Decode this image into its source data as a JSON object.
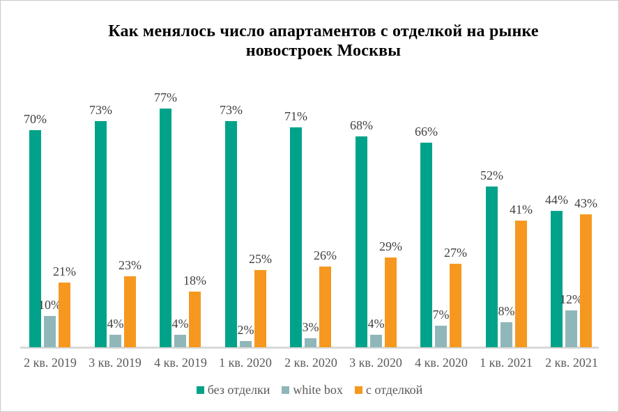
{
  "chart_data": {
    "type": "bar",
    "title": "Как менялось число апартаментов с отделкой на рынке новостроек Москвы",
    "title_lines": [
      "Как менялось число апартаментов с отделкой на рынке",
      "новостроек Москвы"
    ],
    "categories": [
      "2 кв. 2019",
      "3 кв. 2019",
      "4 кв. 2019",
      "1 кв. 2020",
      "2 кв. 2020",
      "3 кв. 2020",
      "4 кв. 2020",
      "1 кв. 2021",
      "2 кв. 2021"
    ],
    "series": [
      {
        "key": "bez-otdelki",
        "name": "без отделки",
        "color": "#00A38A",
        "values": [
          70,
          73,
          77,
          73,
          71,
          68,
          66,
          52,
          44
        ]
      },
      {
        "key": "white-box",
        "name": "white box",
        "color": "#8FB7BA",
        "values": [
          10,
          4,
          4,
          2,
          3,
          4,
          7,
          8,
          12
        ]
      },
      {
        "key": "s-otdelkoy",
        "name": "с отделкой",
        "color": "#F6981F",
        "values": [
          21,
          23,
          18,
          25,
          26,
          29,
          27,
          41,
          43
        ]
      }
    ],
    "value_suffix": "%",
    "xlabel": "",
    "ylabel": "",
    "ylim": [
      0,
      100
    ],
    "grid": false,
    "legend_position": "bottom",
    "colors": {
      "axis_line": "#D9D9D9",
      "value_label": "#404040",
      "axis_label": "#595959",
      "legend_label": "#595959",
      "title": "#000000",
      "background": "#FFFFFF",
      "frame_border": "#C9C9C9"
    }
  }
}
